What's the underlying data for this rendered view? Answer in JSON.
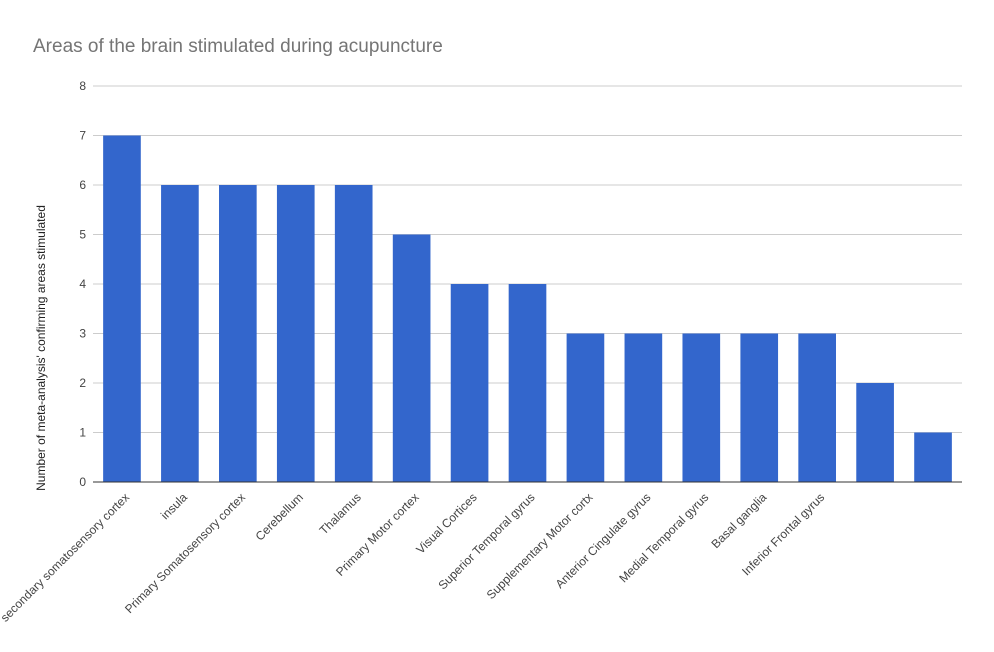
{
  "chart_data": {
    "type": "bar",
    "title": "Areas of the brain stimulated during acupuncture",
    "xlabel": "",
    "ylabel": "Number of meta-analysis' confirming areas stimulated",
    "ylim": [
      0,
      8
    ],
    "yticks": [
      "0",
      "1",
      "2",
      "3",
      "4",
      "5",
      "6",
      "7",
      "8"
    ],
    "grid": true,
    "bar_color": "#3366cc",
    "categories": [
      "secondary somatosensory cortex",
      "insula",
      "Primary Somatosensory cortex",
      "Cerebellum",
      "Thalamus",
      "Primary Motor cortex",
      "Visual Cortices",
      "Superior Temporal gyrus",
      "Supplementary Motor cortx",
      "Anterior Cingulate gyrus",
      "Medial Temporal gyrus",
      "Basal ganglia",
      "Inferior Frontal gyrus",
      "",
      ""
    ],
    "values": [
      7,
      6,
      6,
      6,
      6,
      5,
      4,
      4,
      3,
      3,
      3,
      3,
      3,
      2,
      1
    ]
  }
}
